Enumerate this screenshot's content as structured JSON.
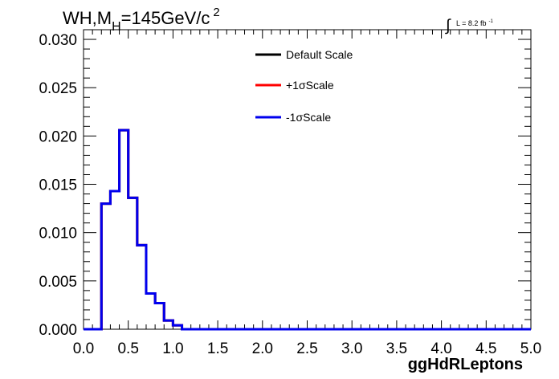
{
  "chart_data": {
    "type": "line",
    "title_main": "WH,M",
    "title_sub": "H",
    "title_value": "=145GeV/c",
    "title_sup": "2",
    "lumi_integral": "∫",
    "lumi_text": "L = 8.2 fb",
    "lumi_sup": "-1",
    "xlabel": "ggHdRLeptons",
    "ylabel": "",
    "xlim": [
      0.0,
      5.0
    ],
    "ylim": [
      0.0,
      0.031
    ],
    "x_ticks": [
      "0.0",
      "0.5",
      "1.0",
      "1.5",
      "2.0",
      "2.5",
      "3.0",
      "3.5",
      "4.0",
      "4.5",
      "5.0"
    ],
    "y_ticks": [
      "0.000",
      "0.005",
      "0.010",
      "0.015",
      "0.020",
      "0.025",
      "0.030"
    ],
    "bin_edges": [
      0.0,
      0.1,
      0.2,
      0.3,
      0.4,
      0.5,
      0.6,
      0.7,
      0.8,
      0.9,
      1.0,
      1.1,
      1.2,
      1.3,
      1.4,
      1.5,
      1.6,
      1.7,
      1.8,
      1.9,
      2.0,
      2.1,
      2.2,
      2.3,
      2.4,
      2.5,
      2.6,
      2.7,
      2.8,
      2.9,
      3.0,
      3.1,
      3.2,
      3.3,
      3.4,
      3.5,
      3.6,
      3.7,
      3.8,
      3.9,
      4.0,
      4.1,
      4.2,
      4.3,
      4.4,
      4.5,
      4.6,
      4.7,
      4.8,
      4.9,
      5.0
    ],
    "series": [
      {
        "name": "Default Scale",
        "color": "#000000",
        "values": [
          0,
          0,
          0.013,
          0.0143,
          0.0206,
          0.0136,
          0.0087,
          0.0037,
          0.0027,
          0.0009,
          0.0004,
          0,
          0,
          0,
          0,
          0,
          0,
          0,
          0,
          0,
          0,
          0,
          0,
          0,
          0,
          0,
          0,
          0,
          0,
          0,
          0,
          0,
          0,
          0,
          0,
          0,
          0,
          0,
          0,
          0,
          0,
          0,
          0,
          0,
          0,
          0,
          0,
          0,
          0,
          0
        ]
      },
      {
        "name": "+1σScale",
        "color": "#ff0000",
        "values": [
          0,
          0,
          0.013,
          0.0143,
          0.0206,
          0.0136,
          0.0087,
          0.0037,
          0.0027,
          0.0009,
          0.0004,
          0,
          0,
          0,
          0,
          0,
          0,
          0,
          0,
          0,
          0,
          0,
          0,
          0,
          0,
          0,
          0,
          0,
          0,
          0,
          0,
          0,
          0,
          0,
          0,
          0,
          0,
          0,
          0,
          0,
          0,
          0,
          0,
          0,
          0,
          0,
          0,
          0,
          0,
          0
        ]
      },
      {
        "name": "-1σScale",
        "color": "#0000ee",
        "values": [
          0,
          0,
          0.013,
          0.0143,
          0.0206,
          0.0136,
          0.0087,
          0.0037,
          0.0027,
          0.0009,
          0.0004,
          0,
          0,
          0,
          0,
          0,
          0,
          0,
          0,
          0,
          0,
          0,
          0,
          0,
          0,
          0,
          0,
          0,
          0,
          0,
          0,
          0,
          0,
          0,
          0,
          0,
          0,
          0,
          0,
          0,
          0,
          0,
          0,
          0,
          0,
          0,
          0,
          0,
          0,
          0
        ]
      }
    ],
    "legend_position": "top-right",
    "grid": false
  }
}
